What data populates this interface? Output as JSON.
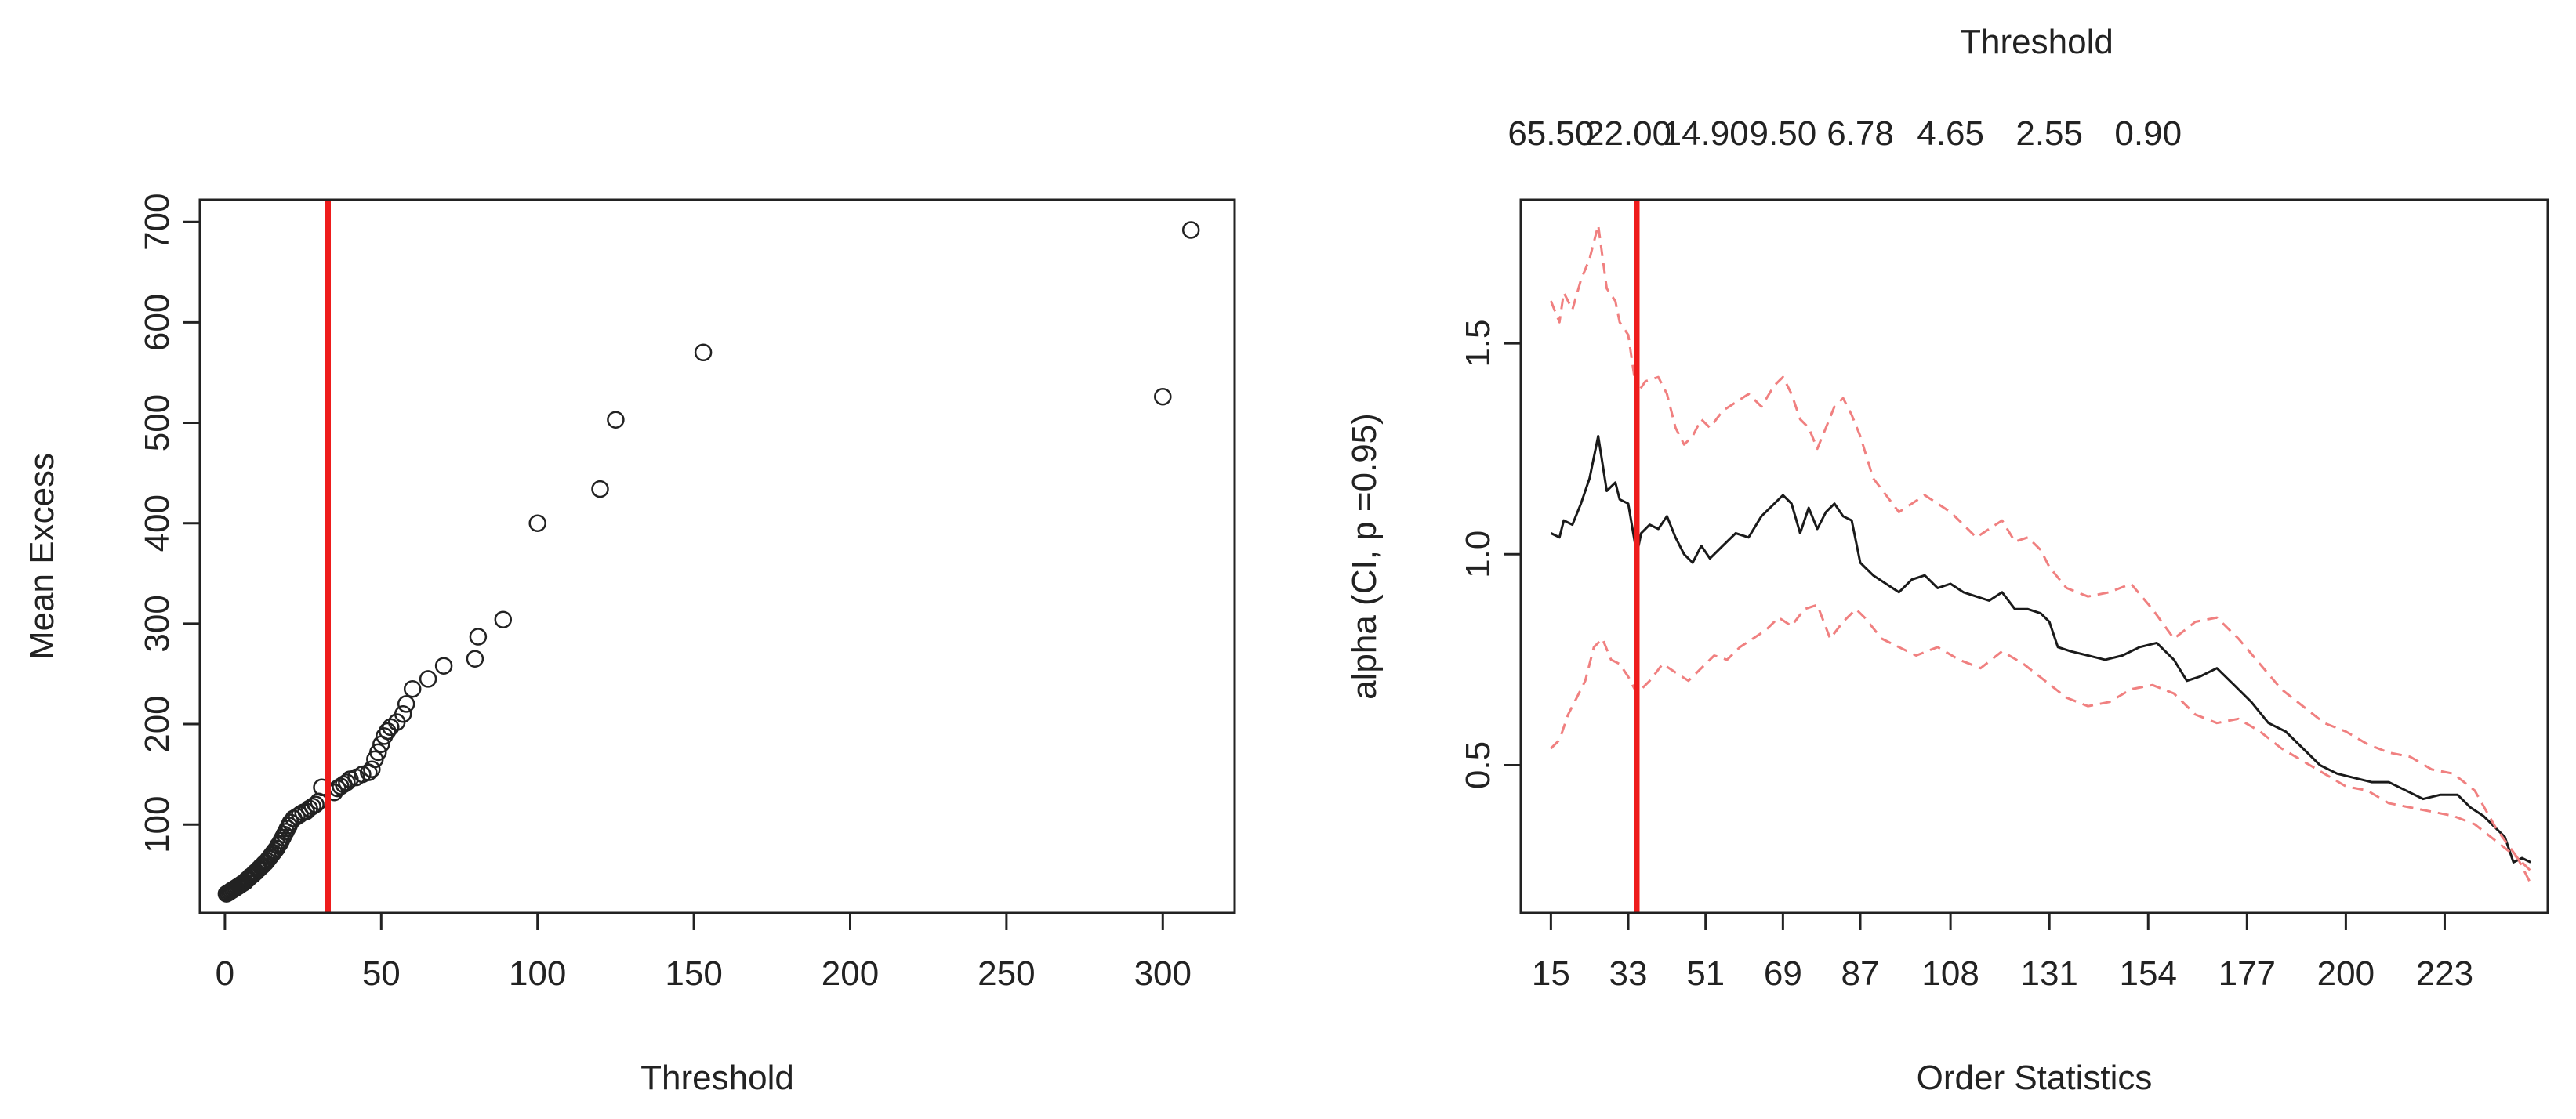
{
  "chart_data": [
    {
      "type": "scatter",
      "xlabel": "Threshold",
      "ylabel": "Mean Excess",
      "xlim": [
        -8,
        323
      ],
      "ylim": [
        12,
        722
      ],
      "xticks": [
        0,
        50,
        100,
        150,
        200,
        250,
        300
      ],
      "yticks": [
        100,
        200,
        300,
        400,
        500,
        600,
        700
      ],
      "xtick_labels": [
        "0",
        "50",
        "100",
        "150",
        "200",
        "250",
        "300"
      ],
      "ytick_labels": [
        "100",
        "200",
        "300",
        "400",
        "500",
        "600",
        "700"
      ],
      "marker": "open-circle",
      "threshold_line": {
        "x": 33,
        "color": "#ee1c1c"
      },
      "points": [
        [
          0.5,
          31
        ],
        [
          1,
          32
        ],
        [
          1.5,
          33
        ],
        [
          2,
          34
        ],
        [
          2.5,
          35
        ],
        [
          3,
          36
        ],
        [
          3.5,
          37
        ],
        [
          4,
          38
        ],
        [
          4.5,
          39
        ],
        [
          5,
          40
        ],
        [
          5.5,
          41
        ],
        [
          6,
          42
        ],
        [
          6.5,
          43
        ],
        [
          7,
          45
        ],
        [
          7.5,
          46
        ],
        [
          8,
          48
        ],
        [
          8.5,
          49
        ],
        [
          9,
          50
        ],
        [
          9.5,
          52
        ],
        [
          10,
          53
        ],
        [
          10.5,
          55
        ],
        [
          11,
          56
        ],
        [
          11.5,
          58
        ],
        [
          12,
          59
        ],
        [
          12.5,
          61
        ],
        [
          13,
          62
        ],
        [
          13.5,
          64
        ],
        [
          14,
          66
        ],
        [
          14.5,
          68
        ],
        [
          15,
          70
        ],
        [
          15.5,
          72
        ],
        [
          16,
          74
        ],
        [
          16.5,
          76
        ],
        [
          17,
          79
        ],
        [
          17.5,
          81
        ],
        [
          18,
          84
        ],
        [
          18.5,
          87
        ],
        [
          19,
          90
        ],
        [
          19.5,
          93
        ],
        [
          20,
          96
        ],
        [
          20.5,
          99
        ],
        [
          21,
          102
        ],
        [
          22,
          106
        ],
        [
          23,
          108
        ],
        [
          24,
          110
        ],
        [
          25,
          112
        ],
        [
          26,
          113
        ],
        [
          27,
          116
        ],
        [
          28,
          118
        ],
        [
          29,
          120
        ],
        [
          30,
          123
        ],
        [
          31,
          137
        ],
        [
          35,
          132
        ],
        [
          36,
          136
        ],
        [
          37,
          138
        ],
        [
          38,
          140
        ],
        [
          39,
          142
        ],
        [
          40,
          145
        ],
        [
          42,
          147
        ],
        [
          44,
          150
        ],
        [
          46,
          152
        ],
        [
          47,
          155
        ],
        [
          48,
          165
        ],
        [
          49,
          172
        ],
        [
          50,
          180
        ],
        [
          51,
          188
        ],
        [
          52,
          193
        ],
        [
          53,
          197
        ],
        [
          55,
          202
        ],
        [
          57,
          210
        ],
        [
          58,
          220
        ],
        [
          60,
          235
        ],
        [
          65,
          245
        ],
        [
          70,
          258
        ],
        [
          80,
          265
        ],
        [
          81,
          287
        ],
        [
          89,
          304
        ],
        [
          100,
          400
        ],
        [
          120,
          434
        ],
        [
          125,
          503
        ],
        [
          153,
          570
        ],
        [
          300,
          526
        ],
        [
          309,
          692
        ]
      ]
    },
    {
      "type": "line",
      "xlabel": "Order Statistics",
      "ylabel": "alpha (CI, p =0.95)",
      "top_axis_label": "Threshold",
      "xlim": [
        8,
        247
      ],
      "ylim": [
        0.15,
        1.84
      ],
      "xticks": [
        15,
        33,
        51,
        69,
        87,
        108,
        131,
        154,
        177,
        200,
        223
      ],
      "xtick_labels": [
        "15",
        "33",
        "51",
        "69",
        "87",
        "108",
        "131",
        "154",
        "177",
        "200",
        "223"
      ],
      "yticks": [
        0.5,
        1.0,
        1.5
      ],
      "ytick_labels": [
        "0.5",
        "1.0",
        "1.5"
      ],
      "top_ticks": [
        15,
        33,
        51,
        69,
        87,
        108,
        131,
        154
      ],
      "top_tick_labels": [
        "65.50",
        "22.00",
        "14.90",
        "9.50",
        "6.78",
        "4.65",
        "2.55",
        "0.90"
      ],
      "threshold_line": {
        "x": 35,
        "color": "#ee1c1c"
      },
      "series": [
        {
          "role": "estimate",
          "color": "#1a1a1a",
          "style": "solid",
          "x": [
            15,
            17,
            18,
            20,
            22,
            24,
            26,
            28,
            30,
            31,
            33,
            35,
            36,
            38,
            40,
            42,
            44,
            46,
            48,
            50,
            52,
            55,
            58,
            61,
            64,
            67,
            69,
            71,
            73,
            75,
            77,
            79,
            81,
            83,
            85,
            87,
            88,
            90,
            93,
            96,
            99,
            102,
            105,
            108,
            111,
            114,
            117,
            120,
            123,
            126,
            129,
            131,
            133,
            136,
            140,
            144,
            148,
            152,
            156,
            160,
            163,
            166,
            170,
            174,
            178,
            182,
            186,
            190,
            194,
            198,
            202,
            206,
            210,
            214,
            218,
            222,
            226,
            229,
            232,
            235,
            237,
            239,
            241,
            243
          ],
          "y": [
            1.05,
            1.04,
            1.08,
            1.07,
            1.12,
            1.18,
            1.28,
            1.15,
            1.17,
            1.13,
            1.12,
            1.0,
            1.05,
            1.07,
            1.06,
            1.09,
            1.04,
            1.0,
            0.98,
            1.02,
            0.99,
            1.02,
            1.05,
            1.04,
            1.09,
            1.12,
            1.14,
            1.12,
            1.05,
            1.11,
            1.06,
            1.1,
            1.12,
            1.09,
            1.08,
            0.98,
            0.97,
            0.95,
            0.93,
            0.91,
            0.94,
            0.95,
            0.92,
            0.93,
            0.91,
            0.9,
            0.89,
            0.91,
            0.87,
            0.87,
            0.86,
            0.84,
            0.78,
            0.77,
            0.76,
            0.75,
            0.76,
            0.78,
            0.79,
            0.75,
            0.7,
            0.71,
            0.73,
            0.69,
            0.65,
            0.6,
            0.58,
            0.54,
            0.5,
            0.48,
            0.47,
            0.46,
            0.46,
            0.44,
            0.42,
            0.43,
            0.43,
            0.4,
            0.38,
            0.35,
            0.33,
            0.27,
            0.28,
            0.27
          ]
        },
        {
          "role": "upper-ci",
          "color": "#f08080",
          "style": "dashed",
          "x": [
            15,
            17,
            18,
            20,
            22,
            24,
            26,
            28,
            30,
            31,
            33,
            35,
            37,
            40,
            42,
            44,
            46,
            48,
            50,
            52,
            55,
            58,
            61,
            64,
            67,
            69,
            71,
            73,
            75,
            77,
            79,
            81,
            83,
            85,
            87,
            90,
            93,
            96,
            99,
            102,
            105,
            108,
            111,
            114,
            117,
            120,
            123,
            126,
            129,
            131,
            135,
            140,
            145,
            150,
            155,
            160,
            165,
            170,
            175,
            180,
            185,
            190,
            195,
            200,
            205,
            210,
            215,
            220,
            225,
            230,
            235,
            240,
            243
          ],
          "y": [
            1.6,
            1.55,
            1.62,
            1.58,
            1.65,
            1.7,
            1.78,
            1.63,
            1.6,
            1.55,
            1.52,
            1.38,
            1.41,
            1.42,
            1.38,
            1.3,
            1.26,
            1.28,
            1.32,
            1.3,
            1.34,
            1.36,
            1.38,
            1.35,
            1.4,
            1.42,
            1.38,
            1.32,
            1.3,
            1.25,
            1.3,
            1.35,
            1.37,
            1.33,
            1.28,
            1.18,
            1.14,
            1.1,
            1.12,
            1.14,
            1.12,
            1.1,
            1.07,
            1.04,
            1.06,
            1.08,
            1.03,
            1.04,
            1.01,
            0.97,
            0.92,
            0.9,
            0.91,
            0.93,
            0.87,
            0.8,
            0.84,
            0.85,
            0.8,
            0.74,
            0.68,
            0.64,
            0.6,
            0.58,
            0.55,
            0.53,
            0.52,
            0.49,
            0.48,
            0.44,
            0.35,
            0.28,
            0.25
          ]
        },
        {
          "role": "lower-ci",
          "color": "#f08080",
          "style": "dashed",
          "x": [
            15,
            17,
            19,
            21,
            23,
            25,
            27,
            29,
            31,
            33,
            35,
            38,
            41,
            44,
            47,
            50,
            53,
            56,
            59,
            62,
            65,
            68,
            71,
            74,
            77,
            80,
            83,
            86,
            88,
            92,
            96,
            100,
            105,
            110,
            115,
            120,
            125,
            130,
            135,
            140,
            145,
            150,
            155,
            160,
            165,
            170,
            175,
            180,
            185,
            190,
            195,
            200,
            205,
            210,
            215,
            220,
            225,
            230,
            235,
            240,
            243
          ],
          "y": [
            0.54,
            0.56,
            0.62,
            0.66,
            0.7,
            0.78,
            0.8,
            0.75,
            0.74,
            0.71,
            0.67,
            0.7,
            0.74,
            0.72,
            0.7,
            0.73,
            0.76,
            0.75,
            0.78,
            0.8,
            0.82,
            0.85,
            0.83,
            0.87,
            0.88,
            0.8,
            0.84,
            0.87,
            0.85,
            0.8,
            0.78,
            0.76,
            0.78,
            0.75,
            0.73,
            0.77,
            0.74,
            0.7,
            0.66,
            0.64,
            0.65,
            0.68,
            0.69,
            0.67,
            0.62,
            0.6,
            0.61,
            0.58,
            0.54,
            0.51,
            0.48,
            0.45,
            0.44,
            0.41,
            0.4,
            0.39,
            0.38,
            0.36,
            0.32,
            0.28,
            0.22
          ]
        }
      ]
    }
  ]
}
